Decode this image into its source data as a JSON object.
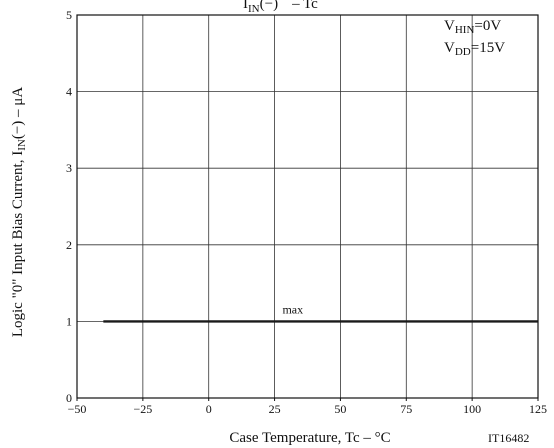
{
  "chart_data": {
    "type": "line",
    "title_lines": [
      "I",
      "IN",
      "(−)",
      "– ",
      "Tc"
    ],
    "xlabel": "Case Temperature, Tc  –  °C",
    "ylabel_main": "Logic \"0\" Input Bias Current, I",
    "ylabel_sub": "IN",
    "ylabel_tail": "(−)  –  μA",
    "xlim": [
      -50,
      125
    ],
    "ylim": [
      0,
      5
    ],
    "xticks": [
      -50,
      -25,
      0,
      25,
      50,
      75,
      100,
      125
    ],
    "xtick_labels": [
      "−50",
      "−25",
      "0",
      "25",
      "50",
      "75",
      "100",
      "125"
    ],
    "yticks": [
      0,
      1,
      2,
      3,
      4,
      5
    ],
    "ytick_labels": [
      "0",
      "1",
      "2",
      "3",
      "4",
      "5"
    ],
    "grid": true,
    "series": [
      {
        "name": "max",
        "x": [
          -40,
          125
        ],
        "y": [
          1,
          1
        ],
        "color": "#1a1a1a"
      }
    ],
    "annotations": {
      "series_label": "max",
      "cond1_main": "V",
      "cond1_sub": "HIN",
      "cond1_tail": "=0V",
      "cond2_main": "V",
      "cond2_sub": "DD",
      "cond2_tail": "=15V",
      "doc_id": "IT16482"
    }
  }
}
